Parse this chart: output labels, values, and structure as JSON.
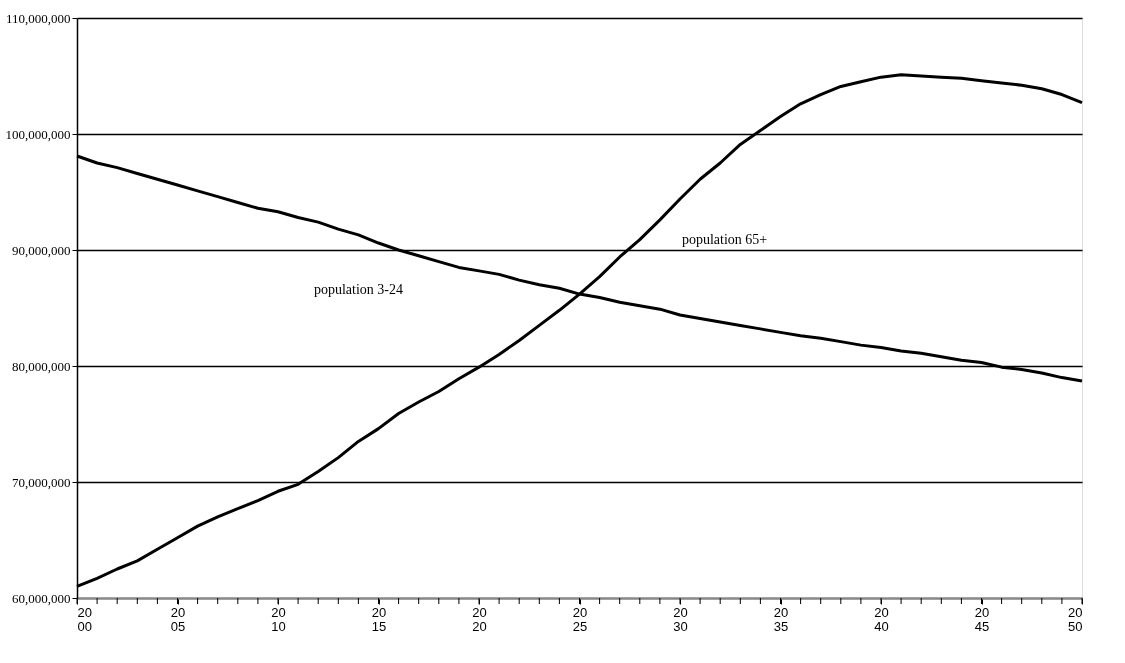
{
  "chart_data": {
    "type": "line",
    "x": [
      2000,
      2001,
      2002,
      2003,
      2004,
      2005,
      2006,
      2007,
      2008,
      2009,
      2010,
      2011,
      2012,
      2013,
      2014,
      2015,
      2016,
      2017,
      2018,
      2019,
      2020,
      2021,
      2022,
      2023,
      2024,
      2025,
      2026,
      2027,
      2028,
      2029,
      2030,
      2031,
      2032,
      2033,
      2034,
      2035,
      2036,
      2037,
      2038,
      2039,
      2040,
      2041,
      2042,
      2043,
      2044,
      2045,
      2046,
      2047,
      2048,
      2049,
      2050
    ],
    "series": [
      {
        "name": "population 3-24",
        "color": "#000000",
        "values": [
          98100000,
          97500000,
          97100000,
          96600000,
          96100000,
          95600000,
          95100000,
          94600000,
          94100000,
          93600000,
          93300000,
          92800000,
          92400000,
          91800000,
          91300000,
          90600000,
          90000000,
          89500000,
          89000000,
          88500000,
          88200000,
          87900000,
          87400000,
          87000000,
          86700000,
          86200000,
          85900000,
          85500000,
          85200000,
          84900000,
          84400000,
          84100000,
          83800000,
          83500000,
          83200000,
          82900000,
          82600000,
          82400000,
          82100000,
          81800000,
          81600000,
          81300000,
          81100000,
          80800000,
          80500000,
          80300000,
          79900000,
          79700000,
          79400000,
          79000000,
          78700000
        ]
      },
      {
        "name": "population 65+",
        "color": "#000000",
        "values": [
          61000000,
          61700000,
          62500000,
          63200000,
          64200000,
          65200000,
          66200000,
          67000000,
          67700000,
          68400000,
          69200000,
          69800000,
          70900000,
          72100000,
          73500000,
          74600000,
          75900000,
          76900000,
          77800000,
          78900000,
          79900000,
          81000000,
          82200000,
          83500000,
          84800000,
          86200000,
          87700000,
          89400000,
          90900000,
          92600000,
          94400000,
          96100000,
          97500000,
          99100000,
          100300000,
          101500000,
          102600000,
          103400000,
          104100000,
          104500000,
          104900000,
          105100000,
          105000000,
          104900000,
          104800000,
          104600000,
          104400000,
          104200000,
          103900000,
          103400000,
          102700000
        ]
      }
    ],
    "xlim": [
      2000,
      2050
    ],
    "xticks": [
      2000,
      {
        "value": 2001,
        "label": null
      },
      {
        "value": 2002,
        "label": null
      },
      {
        "value": 2003,
        "label": null
      },
      {
        "value": 2004,
        "label": null
      },
      2005,
      {
        "value": 2006,
        "label": null
      },
      {
        "value": 2007,
        "label": null
      },
      {
        "value": 2008,
        "label": null
      },
      {
        "value": 2009,
        "label": null
      },
      2010,
      {
        "value": 2011,
        "label": null
      },
      {
        "value": 2012,
        "label": null
      },
      {
        "value": 2013,
        "label": null
      },
      {
        "value": 2014,
        "label": null
      },
      2015,
      {
        "value": 2016,
        "label": null
      },
      {
        "value": 2017,
        "label": null
      },
      {
        "value": 2018,
        "label": null
      },
      {
        "value": 2019,
        "label": null
      },
      2020,
      {
        "value": 2021,
        "label": null
      },
      {
        "value": 2022,
        "label": null
      },
      {
        "value": 2023,
        "label": null
      },
      {
        "value": 2024,
        "label": null
      },
      2025,
      {
        "value": 2026,
        "label": null
      },
      {
        "value": 2027,
        "label": null
      },
      {
        "value": 2028,
        "label": null
      },
      {
        "value": 2029,
        "label": null
      },
      2030,
      {
        "value": 2031,
        "label": null
      },
      {
        "value": 2032,
        "label": null
      },
      {
        "value": 2033,
        "label": null
      },
      {
        "value": 2034,
        "label": null
      },
      2035,
      {
        "value": 2036,
        "label": null
      },
      {
        "value": 2037,
        "label": null
      },
      {
        "value": 2038,
        "label": null
      },
      {
        "value": 2039,
        "label": null
      },
      2040,
      {
        "value": 2041,
        "label": null
      },
      {
        "value": 2042,
        "label": null
      },
      {
        "value": 2043,
        "label": null
      },
      {
        "value": 2044,
        "label": null
      },
      2045,
      {
        "value": 2046,
        "label": null
      },
      {
        "value": 2047,
        "label": null
      },
      {
        "value": 2048,
        "label": null
      },
      {
        "value": 2049,
        "label": null
      },
      2050
    ],
    "ylim": [
      60000000,
      110000000
    ],
    "yticks": [
      {
        "value": 60000000,
        "label": "60,000,000"
      },
      {
        "value": 70000000,
        "label": "70,000,000"
      },
      {
        "value": 80000000,
        "label": "80,000,000"
      },
      {
        "value": 90000000,
        "label": "90,000,000"
      },
      {
        "value": 100000000,
        "label": "100,000,000"
      },
      {
        "value": 110000000,
        "label": "110,000,000"
      }
    ],
    "grid": "y",
    "legend": false,
    "marker": "none",
    "line_style": "solid"
  }
}
